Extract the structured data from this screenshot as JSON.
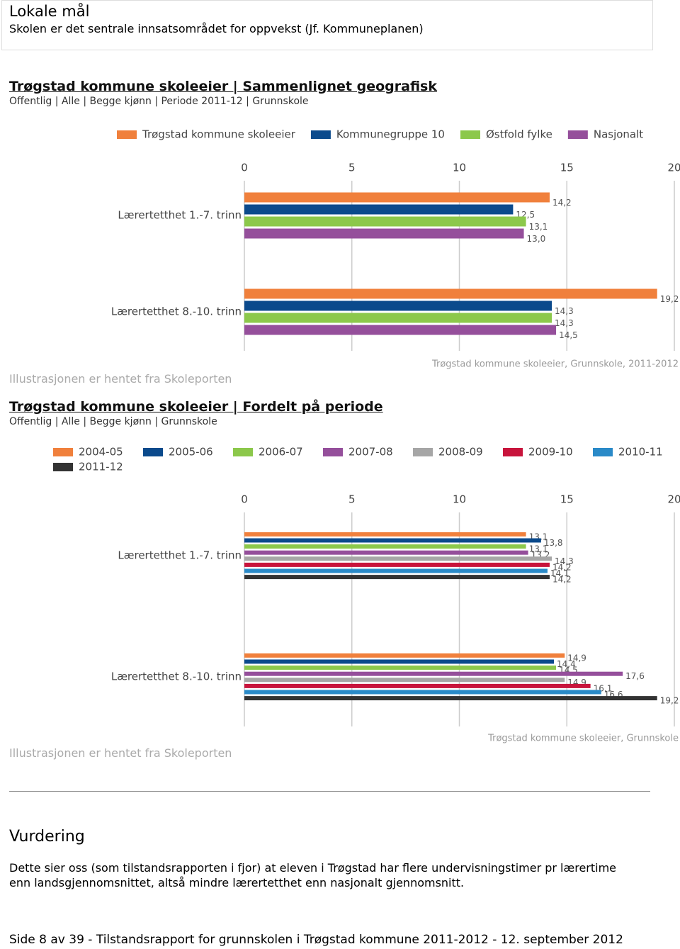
{
  "header": {
    "title": "Lokale mål",
    "subtitle": "Skolen er det sentrale innsatsområdet for oppvekst (Jf. Kommuneplanen)"
  },
  "chart_data": [
    {
      "type": "hbar",
      "title": "Trøgstad kommune skoleeier | Sammenlignet geografisk",
      "subtitle": "Offentlig | Alle | Begge kjønn | Periode 2011-12 | Grunnskole",
      "categories": [
        "Lærertetthet 1.-7. trinn",
        "Lærertetthet 8.-10. trinn"
      ],
      "series": [
        {
          "name": "Trøgstad kommune skoleeier",
          "color": "#f0803c",
          "values": [
            14.2,
            19.2
          ],
          "value_labels": [
            "14,2",
            "19,2"
          ]
        },
        {
          "name": "Kommunegruppe 10",
          "color": "#0b4a8c",
          "values": [
            12.5,
            14.3
          ],
          "value_labels": [
            "12,5",
            "14,3"
          ]
        },
        {
          "name": "Østfold fylke",
          "color": "#8cc84b",
          "values": [
            13.1,
            14.3
          ],
          "value_labels": [
            "13,1",
            "14,3"
          ]
        },
        {
          "name": "Nasjonalt",
          "color": "#954f9b",
          "values": [
            13.0,
            14.5
          ],
          "value_labels": [
            "13,0",
            "14,5"
          ]
        }
      ],
      "xlim": [
        0,
        20
      ],
      "xticks": [
        0,
        5,
        10,
        15,
        20
      ],
      "grid": true,
      "legend": "top",
      "note": "Illustrasjonen er hentet fra Skoleporten",
      "source": "Trøgstad kommune skoleeier, Grunnskole, 2011-2012"
    },
    {
      "type": "hbar",
      "title": "Trøgstad kommune skoleeier | Fordelt på periode",
      "subtitle": "Offentlig | Alle | Begge kjønn | Grunnskole",
      "categories": [
        "Lærertetthet 1.-7. trinn",
        "Lærertetthet 8.-10. trinn"
      ],
      "series": [
        {
          "name": "2004-05",
          "color": "#f0803c",
          "values": [
            13.1,
            14.9
          ],
          "value_labels": [
            "13,1",
            "14,9"
          ]
        },
        {
          "name": "2005-06",
          "color": "#0b4a8c",
          "values": [
            13.8,
            14.4
          ],
          "value_labels": [
            "13,8",
            "14,4"
          ]
        },
        {
          "name": "2006-07",
          "color": "#8cc84b",
          "values": [
            13.1,
            14.5
          ],
          "value_labels": [
            "13,1",
            "14,5"
          ]
        },
        {
          "name": "2007-08",
          "color": "#954f9b",
          "values": [
            13.2,
            17.6
          ],
          "value_labels": [
            "13,2",
            "17,6"
          ]
        },
        {
          "name": "2008-09",
          "color": "#a6a6a6",
          "values": [
            14.3,
            14.9
          ],
          "value_labels": [
            "14,3",
            "14,9"
          ]
        },
        {
          "name": "2009-10",
          "color": "#c8143c",
          "values": [
            14.2,
            16.1
          ],
          "value_labels": [
            "14,2",
            "16,1"
          ]
        },
        {
          "name": "2010-11",
          "color": "#2a8ac8",
          "values": [
            14.1,
            16.6
          ],
          "value_labels": [
            "14,1",
            "16,6"
          ]
        },
        {
          "name": "2011-12",
          "color": "#333333",
          "values": [
            14.2,
            19.2
          ],
          "value_labels": [
            "14,2",
            "19,2"
          ]
        }
      ],
      "xlim": [
        0,
        20
      ],
      "xticks": [
        0,
        5,
        10,
        15,
        20
      ],
      "grid": true,
      "legend": "top",
      "note": "Illustrasjonen er hentet fra Skoleporten",
      "source": "Trøgstad kommune skoleeier, Grunnskole"
    }
  ],
  "assessment": {
    "heading": "Vurdering",
    "text": "Dette sier oss (som tilstandsrapporten i fjor) at eleven i Trøgstad har flere undervisningstimer pr lærertime enn landsgjennomsnittet, altså mindre lærertetthet enn nasjonalt gjennomsnitt."
  },
  "footer": "Side 8 av 39 - Tilstandsrapport for grunnskolen i Trøgstad kommune 2011-2012 - 12. september 2012"
}
